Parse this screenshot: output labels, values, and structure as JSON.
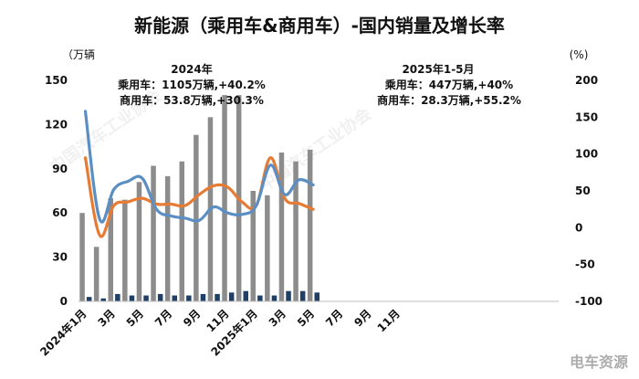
{
  "chart_data": {
    "type": "bar",
    "title": "新能源（乘用车&商用车）-国内销量及增长率",
    "left_unit": "（万辆",
    "right_unit": "(%)",
    "ylim_left": [
      0,
      150
    ],
    "ylim_right": [
      -100,
      200
    ],
    "left_ticks": [
      "0",
      "30",
      "60",
      "90",
      "120",
      "150"
    ],
    "right_ticks": [
      "-100",
      "-50",
      "0",
      "50",
      "100",
      "150",
      "200"
    ],
    "x_tick_labels": [
      "2024年1月",
      "3月",
      "5月",
      "7月",
      "9月",
      "11月",
      "2025年1月",
      "3月",
      "5月",
      "7月",
      "9月",
      "11月"
    ],
    "series": [
      {
        "kind": "bar",
        "color": "#8c8c8c",
        "values": [
          60,
          37,
          70,
          69,
          81,
          92,
          85,
          95,
          113,
          125,
          140,
          140,
          75,
          72,
          101,
          95,
          103
        ]
      },
      {
        "kind": "bar",
        "color": "#1f3f66",
        "values": [
          3,
          2,
          5,
          4,
          4,
          5,
          4,
          4,
          5,
          5,
          6,
          7,
          4,
          4,
          7,
          7,
          6
        ]
      },
      {
        "kind": "line",
        "color": "#e87b34",
        "values": [
          95,
          -10,
          30,
          35,
          40,
          32,
          32,
          30,
          45,
          57,
          55,
          35,
          30,
          95,
          40,
          33,
          25
        ]
      },
      {
        "kind": "line",
        "color": "#5b8fc4",
        "values": [
          158,
          12,
          52,
          63,
          67,
          25,
          16,
          13,
          10,
          28,
          20,
          18,
          30,
          85,
          45,
          65,
          58
        ]
      }
    ],
    "annotations": [
      {
        "lines": [
          "2024年",
          "乘用车：1105万辆,+40.2%",
          "商用车：53.8万辆,+30.3%"
        ]
      },
      {
        "lines": [
          "2025年1-5月",
          "乘用车：447万辆,+40%",
          "商用车：28.3万辆,+55.2%"
        ]
      }
    ]
  },
  "watermarks": {
    "main": "中国汽车工业协会",
    "corner": "电车资源"
  },
  "colors": {
    "gray_bar": "#8c8c8c",
    "navy_bar": "#1f3f66",
    "orange_line": "#e87b34",
    "blue_line": "#5b8fc4"
  }
}
